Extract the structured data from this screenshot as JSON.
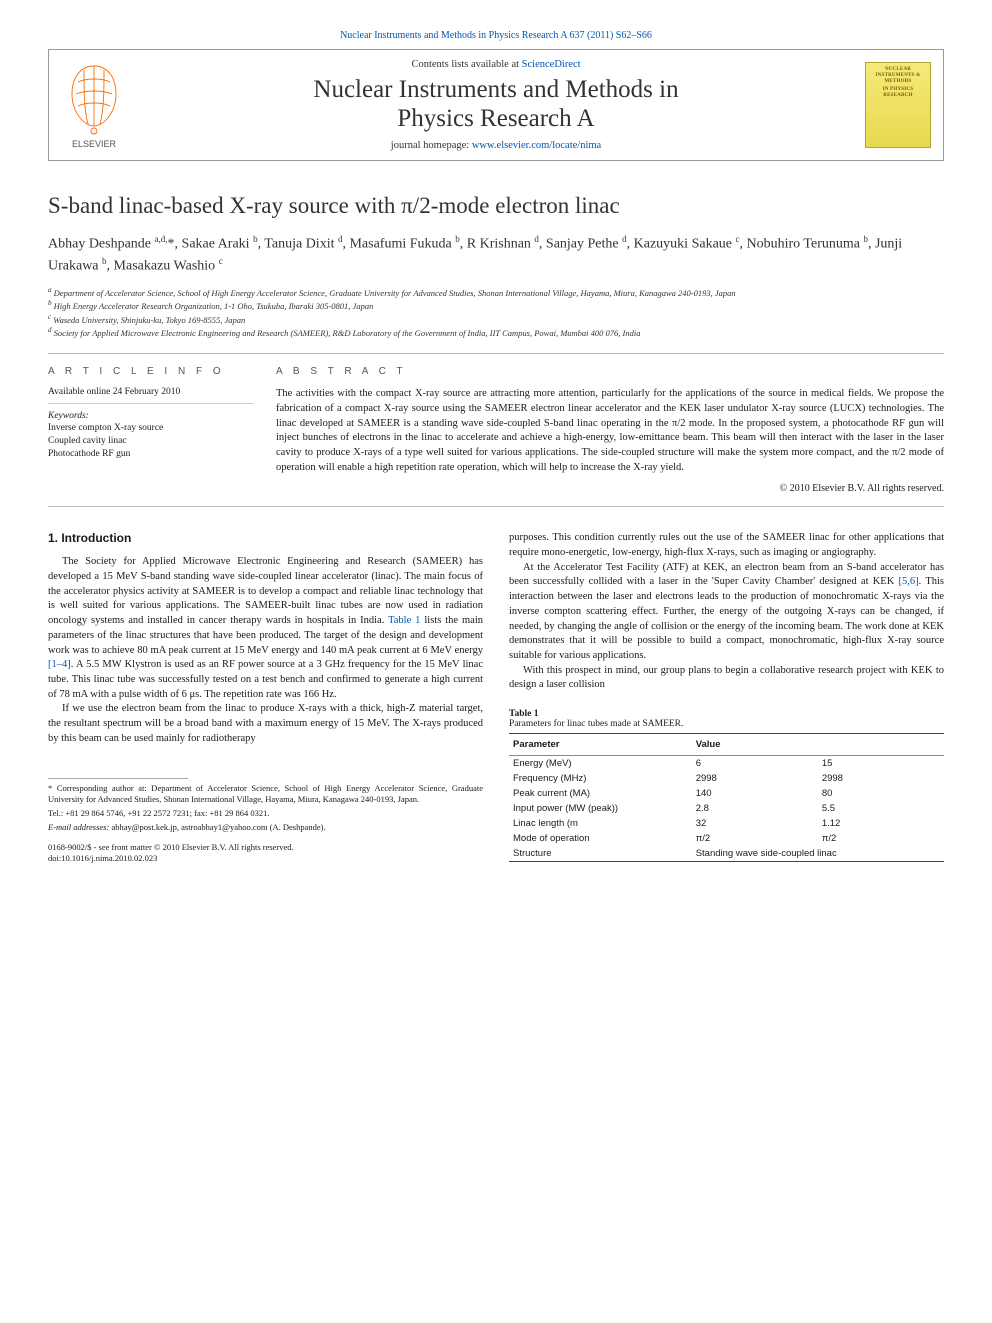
{
  "journal_ref": {
    "prefix": "Nuclear Instruments and Methods in Physics Research A 637 (2011) S62–S66",
    "link_text": "Nuclear Instruments and Methods in Physics Research A"
  },
  "header": {
    "contents_prefix": "Contents lists available at ",
    "contents_link": "ScienceDirect",
    "journal_title_line1": "Nuclear Instruments and Methods in",
    "journal_title_line2": "Physics Research A",
    "homepage_prefix": "journal homepage: ",
    "homepage_url": "www.elsevier.com/locate/nima",
    "elsevier_label": "ELSEVIER",
    "cover_text_top": "NUCLEAR INSTRUMENTS & METHODS",
    "cover_text_mid": "IN PHYSICS RESEARCH"
  },
  "title": "S-band linac-based X-ray source with π/2-mode electron linac",
  "authors_html": "Abhay Deshpande <sup>a,d,</sup><span class='star'>*</span>, Sakae Araki <sup>b</sup>, Tanuja Dixit <sup>d</sup>, Masafumi Fukuda <sup>b</sup>, R Krishnan <sup>d</sup>, Sanjay Pethe <sup>d</sup>, Kazuyuki Sakaue <sup>c</sup>, Nobuhiro Terunuma <sup>b</sup>, Junji Urakawa <sup>b</sup>, Masakazu Washio <sup>c</sup>",
  "affiliations": [
    "a Department of Accelerator Science, School of High Energy Accelerator Science, Graduate University for Advanced Studies, Shonan International Village, Hayama, Miura, Kanagawa 240-0193, Japan",
    "b High Energy Accelerator Research Organization, 1-1 Oho, Tsukuba, Ibaraki 305-0801, Japan",
    "c Waseda University, Shinjuku-ku, Tokyo 169-8555, Japan",
    "d Society for Applied Microwave Electronic Engineering and Research (SAMEER), R&D Laboratory of the Government of India, IIT Campus, Powai, Mumbai 400 076, India"
  ],
  "info": {
    "heading_left": "A R T I C L E  I N F O",
    "heading_right": "A B S T R A C T",
    "history": "Available online 24 February 2010",
    "keywords_label": "Keywords:",
    "keywords": [
      "Inverse compton X-ray source",
      "Coupled cavity linac",
      "Photocathode RF gun"
    ],
    "abstract": "The activities with the compact X-ray source are attracting more attention, particularly for the applications of the source in medical fields. We propose the fabrication of a compact X-ray source using the SAMEER electron linear accelerator and the KEK laser undulator X-ray source (LUCX) technologies. The linac developed at SAMEER is a standing wave side-coupled S-band linac operating in the π/2 mode. In the proposed system, a photocathode RF gun will inject bunches of electrons in the linac to accelerate and achieve a high-energy, low-emittance beam. This beam will then interact with the laser in the laser cavity to produce X-rays of a type well suited for various applications. The side-coupled structure will make the system more compact, and the π/2 mode of operation will enable a high repetition rate operation, which will help to increase the X-ray yield.",
    "copyright": "© 2010 Elsevier B.V. All rights reserved."
  },
  "section1": {
    "heading": "1.  Introduction",
    "p1": "The Society for Applied Microwave Electronic Engineering and Research (SAMEER) has developed a 15 MeV S-band standing wave side-coupled linear accelerator (linac). The main focus of the accelerator physics activity at SAMEER is to develop a compact and reliable linac technology that is well suited for various applications. The SAMEER-built linac tubes are now used in radiation oncology systems and installed in cancer therapy wards in hospitals in India. ",
    "p1_link": "Table 1",
    "p1b": " lists the main parameters of the linac structures that have been produced. The target of the design and development work was to achieve 80 mA peak current at 15 MeV energy and 140 mA peak current at 6 MeV energy ",
    "p1_ref": "[1–4]",
    "p1c": ". A 5.5 MW Klystron is used as an RF power source at a 3 GHz frequency for the 15 MeV linac tube. This linac tube was successfully tested on a test bench and confirmed to generate a high current of 78 mA with a pulse width of 6 μs. The repetition rate was 166 Hz.",
    "p2": "If we use the electron beam from the linac to produce X-rays with a thick, high-Z material target, the resultant spectrum will be a broad band with a maximum energy of 15 MeV. The X-rays produced by this beam can be used mainly for radiotherapy",
    "p3": "purposes. This condition currently rules out the use of the SAMEER linac for other applications that require mono-energetic, low-energy, high-flux X-rays, such as imaging or angiography.",
    "p4a": "At the Accelerator Test Facility (ATF) at KEK, an electron beam from an S-band accelerator has been successfully collided with a laser in the 'Super Cavity Chamber' designed at KEK ",
    "p4_ref": "[5,6]",
    "p4b": ". This interaction between the laser and electrons leads to the production of monochromatic X-rays via the inverse compton scattering effect. Further, the energy of the outgoing X-rays can be changed, if needed, by changing the angle of collision or the energy of the incoming beam. The work done at KEK demonstrates that it will be possible to build a compact, monochromatic, high-flux X-ray source suitable for various applications.",
    "p5": "With this prospect in mind, our group plans to begin a collaborative research project with KEK to design a laser collision"
  },
  "footnotes": {
    "corr": "* Corresponding author at: Department of Accelerator Science, School of High Energy Accelerator Science, Graduate University for Advanced Studies, Shonan International Village, Hayama, Miura, Kanagawa 240-0193, Japan.",
    "tel": "Tel.: +81 29 864 5746, +91 22 2572 7231; fax: +81 29 864 0321.",
    "email_label": "E-mail addresses:",
    "emails": " abhay@post.kek.jp, astroabhay1@yahoo.com (A. Deshpande)."
  },
  "bottom": {
    "issn": "0168-9002/$ - see front matter © 2010 Elsevier B.V. All rights reserved.",
    "doi": "doi:10.1016/j.nima.2010.02.023"
  },
  "table1": {
    "label": "Table 1",
    "caption": "Parameters for linac tubes made at SAMEER.",
    "columns": [
      "Parameter",
      "Value",
      ""
    ],
    "rows": [
      [
        "Energy (MeV)",
        "6",
        "15"
      ],
      [
        "Frequency (MHz)",
        "2998",
        "2998"
      ],
      [
        "Peak current (MA)",
        "140",
        "80"
      ],
      [
        "Input power (MW (peak))",
        "2.8",
        "5.5"
      ],
      [
        "Linac length (m",
        "32",
        "1.12"
      ],
      [
        "Mode of operation",
        "π/2",
        "π/2"
      ],
      [
        "Structure",
        "Standing wave side-coupled linac",
        ""
      ]
    ],
    "col_widths": [
      "42%",
      "29%",
      "29%"
    ]
  },
  "colors": {
    "link": "#0056b3",
    "rule": "#bbb",
    "text": "#1a1a1a",
    "elsevier_orange": "#ff6a00",
    "cover_bg_top": "#f5e97a",
    "cover_bg_bot": "#e8d94d"
  }
}
